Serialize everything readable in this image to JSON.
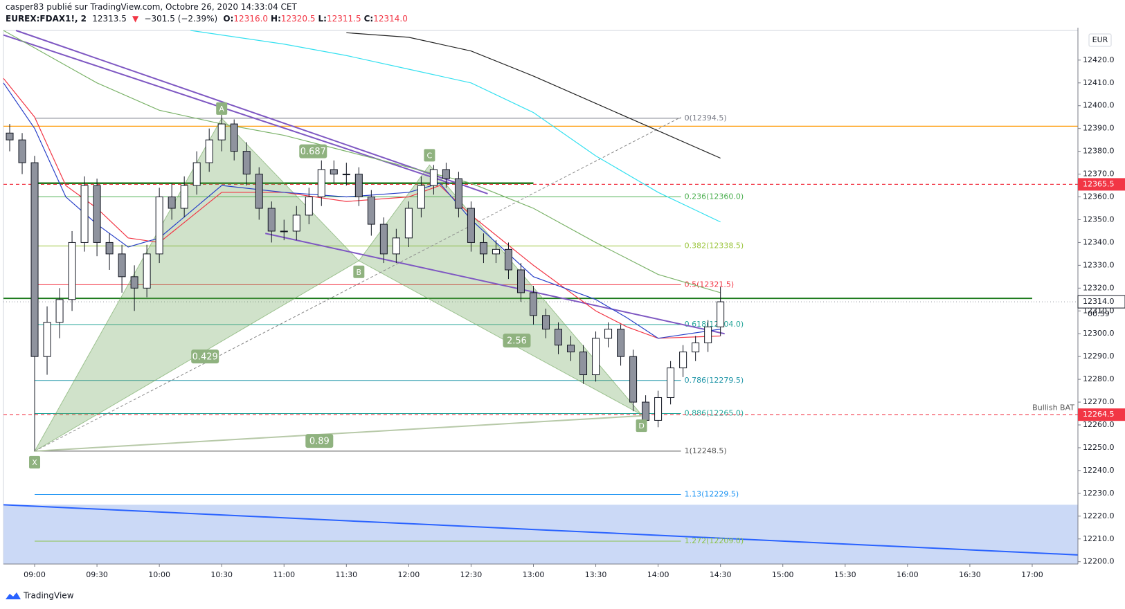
{
  "header": {
    "author_line": "casper83 publié sur TradingView.com, Octobre 26, 2020 14:33:04 CET",
    "symbol": "EUREX:FDAX1!, 2",
    "last": "12313.5",
    "arrow": "▼",
    "change": "−301.5 (−2.39%)",
    "ohlc": [
      {
        "key": "O:",
        "value": "12316.0"
      },
      {
        "key": "H:",
        "value": "12320.5"
      },
      {
        "key": "L:",
        "value": "12311.5"
      },
      {
        "key": "C:",
        "value": "12314.0"
      }
    ]
  },
  "footer": {
    "brand": "TradingView"
  },
  "chart_data": {
    "type": "candlestick",
    "currency": "EUR",
    "countdown": "00:59",
    "up_color": "#ffffff",
    "down_color": "#8f939e",
    "edge_color": "#131722",
    "x": [
      "08:48",
      "08:54",
      "09:00",
      "09:06",
      "09:12",
      "09:18",
      "09:24",
      "09:30",
      "09:36",
      "09:42",
      "09:48",
      "09:54",
      "10:00",
      "10:06",
      "10:12",
      "10:18",
      "10:24",
      "10:30",
      "10:36",
      "10:42",
      "10:48",
      "10:54",
      "11:00",
      "11:06",
      "11:12",
      "11:18",
      "11:24",
      "11:30",
      "11:36",
      "11:42",
      "11:48",
      "11:54",
      "12:00",
      "12:06",
      "12:12",
      "12:18",
      "12:24",
      "12:30",
      "12:36",
      "12:42",
      "12:48",
      "12:54",
      "13:00",
      "13:06",
      "13:12",
      "13:18",
      "13:24",
      "13:30",
      "13:36",
      "13:42",
      "13:48",
      "13:54",
      "14:00",
      "14:06",
      "14:12",
      "14:18",
      "14:24",
      "14:30"
    ],
    "open": [
      12388,
      12385,
      12375,
      12290,
      12305,
      12315,
      12340,
      12365,
      12340,
      12335,
      12325,
      12320,
      12335,
      12360,
      12355,
      12365,
      12375,
      12385,
      12392,
      12380,
      12370,
      12355,
      12345,
      12345,
      12352,
      12360,
      12372,
      12370,
      12370,
      12360,
      12348,
      12335,
      12342,
      12355,
      12365,
      12372,
      12368,
      12355,
      12340,
      12335,
      12337,
      12328,
      12318,
      12308,
      12302,
      12295,
      12292,
      12282,
      12298,
      12302,
      12290,
      12270,
      12262,
      12272,
      12285,
      12292,
      12296,
      12303
    ],
    "high": [
      12392,
      12388,
      12378,
      12312,
      12320,
      12345,
      12369,
      12368,
      12344,
      12339,
      12330,
      12339,
      12364,
      12366,
      12369,
      12380,
      12390,
      12396,
      12394,
      12384,
      12373,
      12358,
      12350,
      12356,
      12364,
      12376,
      12376,
      12375,
      12373,
      12363,
      12351,
      12346,
      12358,
      12369,
      12374,
      12375,
      12371,
      12358,
      12344,
      12341,
      12340,
      12331,
      12321,
      12311,
      12305,
      12299,
      12295,
      12301,
      12305,
      12304,
      12293,
      12273,
      12275,
      12288,
      12295,
      12299,
      12306,
      12320.5
    ],
    "low": [
      12380,
      12370,
      12248.5,
      12282,
      12298,
      12310,
      12336,
      12334,
      12328,
      12318,
      12310,
      12316,
      12331,
      12350,
      12351,
      12361,
      12371,
      12380,
      12376,
      12365,
      12350,
      12340,
      12341,
      12341,
      12348,
      12356,
      12366,
      12365,
      12356,
      12343,
      12331,
      12331,
      12338,
      12351,
      12361,
      12364,
      12351,
      12336,
      12331,
      12331,
      12324,
      12314,
      12304,
      12298,
      12291,
      12288,
      12278,
      12279,
      12294,
      12286,
      12266,
      12260,
      12259,
      12269,
      12281,
      12288,
      12292,
      12299
    ],
    "close": [
      12385,
      12375,
      12290,
      12305,
      12315,
      12340,
      12365,
      12340,
      12335,
      12325,
      12320,
      12335,
      12360,
      12355,
      12365,
      12375,
      12385,
      12392,
      12380,
      12370,
      12355,
      12345,
      12345,
      12352,
      12360,
      12372,
      12370,
      12370,
      12360,
      12348,
      12335,
      12342,
      12355,
      12365,
      12372,
      12368,
      12355,
      12340,
      12335,
      12337,
      12328,
      12318,
      12308,
      12302,
      12295,
      12292,
      12282,
      12298,
      12302,
      12290,
      12270,
      12262,
      12272,
      12285,
      12292,
      12296,
      12303,
      12314
    ],
    "xlim": [
      "08:45",
      "17:22"
    ],
    "xticks": [
      "09:00",
      "09:30",
      "10:00",
      "10:30",
      "11:00",
      "11:30",
      "12:00",
      "12:30",
      "13:00",
      "13:30",
      "14:00",
      "14:30",
      "15:00",
      "15:30",
      "16:00",
      "16:30",
      "17:00"
    ],
    "ylim": [
      12199,
      12433
    ],
    "yticks": [
      {
        "value": 12200,
        "label": "12200.0"
      },
      {
        "value": 12210,
        "label": "12210.0"
      },
      {
        "value": 12220,
        "label": "12220.0"
      },
      {
        "value": 12230,
        "label": "12230.0"
      },
      {
        "value": 12240,
        "label": "12240.0"
      },
      {
        "value": 12250,
        "label": "12250.0"
      },
      {
        "value": 12260,
        "label": "12260.0"
      },
      {
        "value": 12270,
        "label": "12270.0"
      },
      {
        "value": 12280,
        "label": "12280.0"
      },
      {
        "value": 12290,
        "label": "12290.0"
      },
      {
        "value": 12300,
        "label": "12300.0"
      },
      {
        "value": 12310,
        "label": "12310.0"
      },
      {
        "value": 12320,
        "label": "12320.0"
      },
      {
        "value": 12330,
        "label": "12330.0"
      },
      {
        "value": 12340,
        "label": "12340.0"
      },
      {
        "value": 12350,
        "label": "12350.0"
      },
      {
        "value": 12360,
        "label": "12360.0"
      },
      {
        "value": 12370,
        "label": "12370.0"
      },
      {
        "value": 12380,
        "label": "12380.0"
      },
      {
        "value": 12390,
        "label": "12390.0"
      },
      {
        "value": 12400,
        "label": "12400.0"
      },
      {
        "value": 12410,
        "label": "12410.0"
      },
      {
        "value": 12420,
        "label": "12420.0"
      }
    ],
    "price_tags": [
      {
        "value": 12365.5,
        "label": "12365.5",
        "color": "#f23645"
      },
      {
        "value": 12314,
        "label": "12314.0",
        "color": "#ffffff"
      },
      {
        "value": 12264.5,
        "label": "12264.5",
        "color": "#f23645"
      }
    ],
    "zone": {
      "low": 12199,
      "high": 12225,
      "color": "#c5d5f5"
    },
    "zone_line": {
      "x": [
        "08:45",
        "17:22"
      ],
      "values": [
        12225,
        12203
      ],
      "color": "#2962ff"
    },
    "fib_range": [
      "09:00",
      "14:11"
    ],
    "fib_levels": [
      {
        "value": 12394.5,
        "label": "0(12394.5)",
        "color": "#787b86"
      },
      {
        "value": 12360,
        "label": "0.236(12360.0)",
        "color": "#4caf50"
      },
      {
        "value": 12338.5,
        "label": "0.382(12338.5)",
        "color": "#9bc53d"
      },
      {
        "value": 12321.5,
        "label": "0.5(12321.5)",
        "color": "#f23645"
      },
      {
        "value": 12304,
        "label": "0.618(12304.0)",
        "color": "#26a69a"
      },
      {
        "value": 12279.5,
        "label": "0.786(12279.5)",
        "color": "#2196a8"
      },
      {
        "value": 12265,
        "label": "0.886(12265.0)",
        "color": "#26a69a"
      },
      {
        "value": 12248.5,
        "label": "1(12248.5)",
        "color": "#555"
      },
      {
        "value": 12229.5,
        "label": "1.13(12229.5)",
        "color": "#2196f3"
      },
      {
        "value": 12209,
        "label": "1.272(12209.0)",
        "color": "#8bc34a"
      }
    ],
    "hlines": [
      {
        "value": 12391,
        "x": [
          "08:45",
          "17:22"
        ],
        "color": "#ff9800",
        "width": 1.2,
        "dash": ""
      },
      {
        "value": 12366,
        "x": [
          "09:00",
          "13:00"
        ],
        "color": "#1b7a1b",
        "width": 2.5,
        "dash": ""
      },
      {
        "value": 12315.5,
        "x": [
          "08:45",
          "17:00"
        ],
        "color": "#1b7a1b",
        "width": 2,
        "dash": ""
      },
      {
        "value": 12365.5,
        "x": [
          "08:45",
          "17:22"
        ],
        "color": "#f23645",
        "width": 1.2,
        "dash": "5,4"
      },
      {
        "value": 12264.5,
        "x": [
          "08:45",
          "17:22"
        ],
        "color": "#f23645",
        "width": 1.2,
        "dash": "5,4"
      },
      {
        "value": 12314,
        "x": [
          "08:45",
          "17:22"
        ],
        "color": "#9598a1",
        "width": 1,
        "dash": "1,3"
      }
    ],
    "moving_averages": [
      {
        "color": "#222222",
        "x": [
          "11:30",
          "12:00",
          "12:30",
          "13:00",
          "13:30",
          "14:00",
          "14:30"
        ],
        "values": [
          12432,
          12430,
          12424,
          12413,
          12401,
          12389,
          12377
        ]
      },
      {
        "color": "#33e0f0",
        "x": [
          "10:15",
          "11:00",
          "11:30",
          "12:00",
          "12:30",
          "13:00",
          "13:30",
          "14:00",
          "14:30"
        ],
        "values": [
          12433,
          12427,
          12422,
          12416,
          12410,
          12397,
          12378,
          12362,
          12349
        ]
      },
      {
        "color": "#7cb36a",
        "x": [
          "08:45",
          "09:30",
          "10:00",
          "10:30",
          "11:00",
          "11:30",
          "12:00",
          "12:30",
          "13:00",
          "13:30",
          "14:00",
          "14:30"
        ],
        "values": [
          12433,
          12410,
          12398,
          12392,
          12387,
          12380,
          12373,
          12366,
          12355,
          12340,
          12326,
          12318
        ]
      },
      {
        "color": "#f23645",
        "x": [
          "08:45",
          "09:00",
          "09:15",
          "09:30",
          "09:45",
          "10:00",
          "10:30",
          "11:00",
          "11:30",
          "12:00",
          "12:15",
          "12:30",
          "13:00",
          "13:30",
          "13:45",
          "14:00",
          "14:30"
        ],
        "values": [
          12412,
          12395,
          12365,
          12355,
          12342,
          12340,
          12362,
          12362,
          12358,
          12360,
          12365,
          12352,
          12330,
          12310,
          12303,
          12298,
          12299
        ]
      },
      {
        "color": "#2940c8",
        "x": [
          "08:45",
          "09:00",
          "09:15",
          "09:30",
          "09:45",
          "10:00",
          "10:30",
          "11:00",
          "11:30",
          "12:00",
          "12:15",
          "12:30",
          "13:00",
          "13:30",
          "13:45",
          "14:00",
          "14:30"
        ],
        "values": [
          12410,
          12390,
          12360,
          12348,
          12338,
          12342,
          12365,
          12362,
          12360,
          12362,
          12366,
          12350,
          12325,
          12315,
          12307,
          12298,
          12302
        ]
      }
    ],
    "trendlines": [
      {
        "color": "#7e57c2",
        "x": [
          "08:51",
          "12:38"
        ],
        "values": [
          12433,
          12361.4
        ]
      },
      {
        "color": "#7e57c2",
        "x": [
          "08:45",
          "12:20"
        ],
        "values": [
          12431,
          12366
        ]
      },
      {
        "color": "#7e57c2",
        "x": [
          "10:51",
          "14:32"
        ],
        "values": [
          12344,
          12300
        ]
      },
      {
        "color": "#b7c9a8",
        "x": [
          "09:00",
          "13:52"
        ],
        "values": [
          12248.5,
          12264
        ]
      }
    ],
    "projection": {
      "color": "#888",
      "x": [
        "09:00",
        "14:11"
      ],
      "values": [
        12248.5,
        12395
      ]
    },
    "pattern": {
      "fill": "rgba(110,165,90,0.32)",
      "points": [
        {
          "label": "X",
          "x": "09:00",
          "value": 12248.5
        },
        {
          "label": "A",
          "x": "10:30",
          "value": 12394.5
        },
        {
          "label": "B",
          "x": "11:36",
          "value": 12332
        },
        {
          "label": "C",
          "x": "12:10",
          "value": 12374
        },
        {
          "label": "D",
          "x": "13:52",
          "value": 12264.5
        }
      ]
    },
    "ratios": [
      {
        "label": "0.687",
        "x": "11:14",
        "value": 12380
      },
      {
        "label": "0.429",
        "x": "10:22",
        "value": 12290
      },
      {
        "label": "0.89",
        "x": "11:17",
        "value": 12253
      },
      {
        "label": "2.56",
        "x": "12:52",
        "value": 12297
      }
    ],
    "annotation": {
      "text": "Bullish BAT",
      "value": 12267.5
    }
  }
}
